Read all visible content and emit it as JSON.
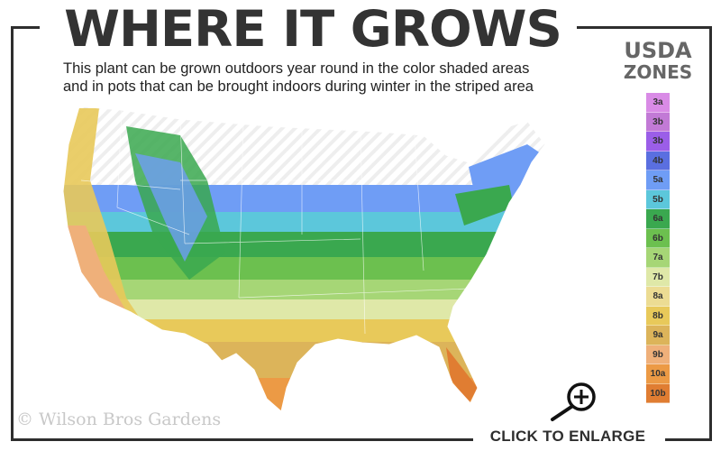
{
  "header": {
    "title": "WHERE IT GROWS",
    "subtitle_line1": "This plant can be grown outdoors year round in the color shaded areas",
    "subtitle_line2": "and in pots that can be brought indoors during winter in the striped area"
  },
  "legend": {
    "title_line1": "USDA",
    "title_line2": "ZONES",
    "zones": [
      {
        "label": "3a",
        "color": "#d98be6"
      },
      {
        "label": "3b",
        "color": "#c27ad6"
      },
      {
        "label": "3b",
        "color": "#9b5ee8"
      },
      {
        "label": "4b",
        "color": "#5a6fe0"
      },
      {
        "label": "5a",
        "color": "#6f9df5"
      },
      {
        "label": "5b",
        "color": "#5cc7db"
      },
      {
        "label": "6a",
        "color": "#3aa84f"
      },
      {
        "label": "6b",
        "color": "#6cc04f"
      },
      {
        "label": "7a",
        "color": "#a6d676"
      },
      {
        "label": "7b",
        "color": "#dfe8a8"
      },
      {
        "label": "8a",
        "color": "#ecdc93"
      },
      {
        "label": "8b",
        "color": "#e8c95a"
      },
      {
        "label": "9a",
        "color": "#dcb45a"
      },
      {
        "label": "9b",
        "color": "#efb07a"
      },
      {
        "label": "10a",
        "color": "#ec9a45"
      },
      {
        "label": "10b",
        "color": "#e07d32"
      }
    ]
  },
  "footer": {
    "copyright": "© Wilson Bros Gardens",
    "enlarge_label": "CLICK TO ENLARGE"
  }
}
